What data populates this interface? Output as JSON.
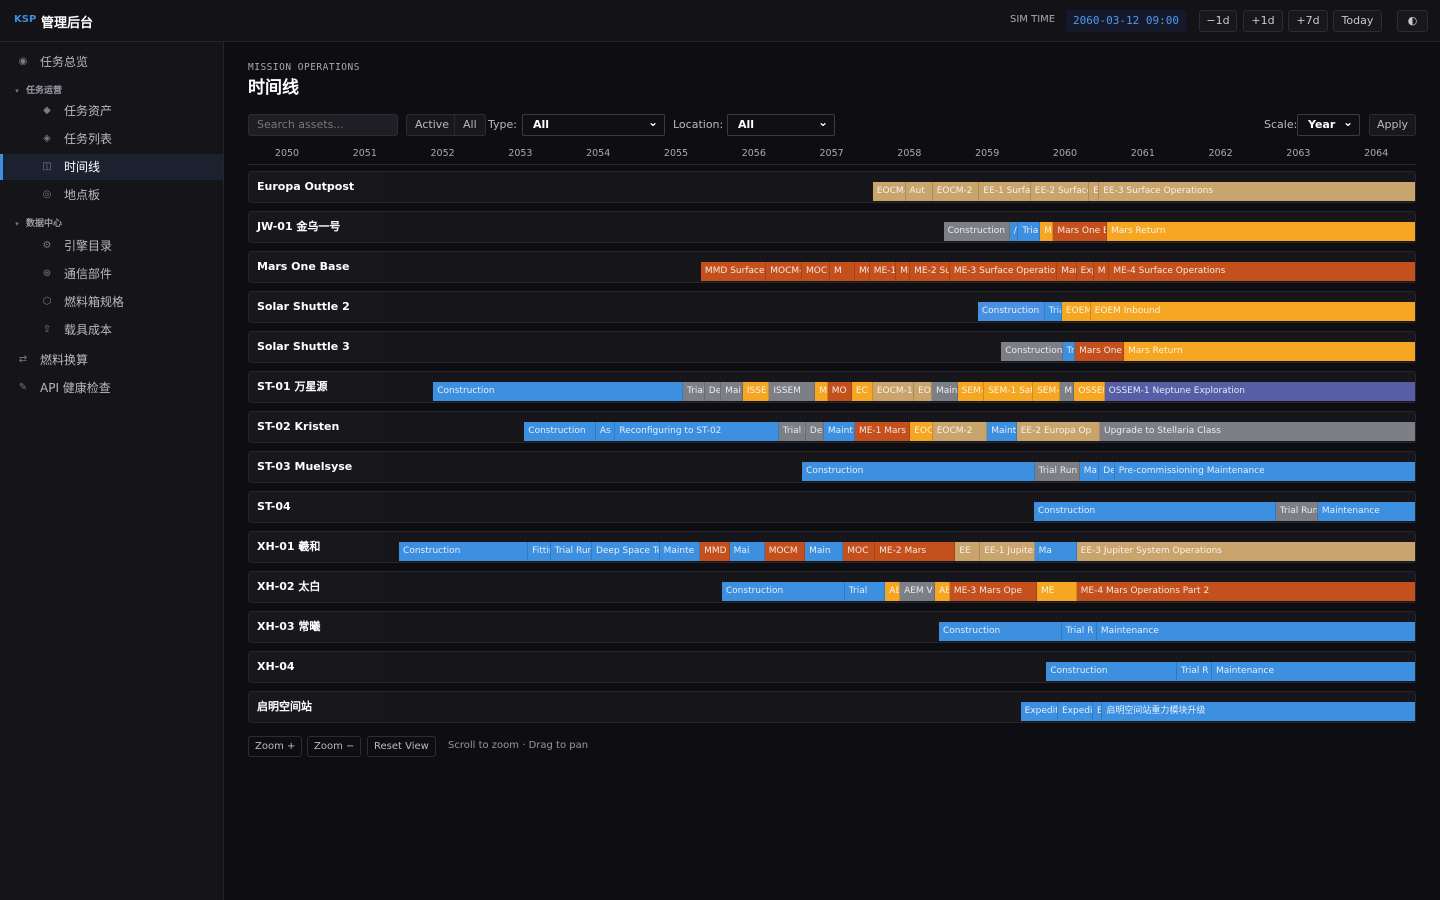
{
  "header": {
    "brand": "KSP",
    "app_name": "管理后台",
    "sim_time_label": "SIM TIME",
    "sim_time": "2060-03-12 09:00",
    "buttons": [
      "−1d",
      "+1d",
      "+7d",
      "Today"
    ],
    "theme_icon": "◐"
  },
  "sidebar": [
    {
      "icon": "◉",
      "label": "任务总览",
      "level": 0
    },
    {
      "icon": "▾",
      "label": "任务运营",
      "level": "section"
    },
    {
      "icon": "◆",
      "label": "任务资产",
      "level": 1
    },
    {
      "icon": "◈",
      "label": "任务列表",
      "level": 1
    },
    {
      "icon": "◫",
      "label": "时间线",
      "level": 1,
      "active": true
    },
    {
      "icon": "◎",
      "label": "地点板",
      "level": 1
    },
    {
      "icon": "▾",
      "label": "数据中心",
      "level": "section"
    },
    {
      "icon": "⚙",
      "label": "引擎目录",
      "level": 1
    },
    {
      "icon": "⊛",
      "label": "通信部件",
      "level": 1
    },
    {
      "icon": "⬡",
      "label": "燃料箱规格",
      "level": 1
    },
    {
      "icon": "⇧",
      "label": "载具成本",
      "level": 1
    },
    {
      "icon": "⇄",
      "label": "燃料换算",
      "level": 0
    },
    {
      "icon": "✎",
      "label": "API 健康检查",
      "level": 0
    }
  ],
  "page": {
    "kicker": "MISSION OPERATIONS",
    "title": "时间线"
  },
  "toolbar": {
    "search_placeholder": "Search assets...",
    "filters": [
      "Active",
      "All"
    ],
    "type_label": "Type:",
    "type_value": "All",
    "location_label": "Location:",
    "location_value": "All",
    "scale_label": "Scale:",
    "scale_value": "Year",
    "apply": "Apply"
  },
  "timeline": {
    "years": [
      2050,
      2051,
      2052,
      2053,
      2054,
      2055,
      2056,
      2057,
      2058,
      2059,
      2060,
      2061,
      2062,
      2063,
      2064
    ],
    "rows": [
      {
        "name": "Europa Outpost",
        "segments": [
          {
            "label": "EOCM-1",
            "start": 2057.53,
            "end": 2057.95,
            "color": "#c9a46c"
          },
          {
            "label": "Aut",
            "start": 2057.95,
            "end": 2058.3,
            "color": "#c9a46c"
          },
          {
            "label": "EOCM-2",
            "start": 2058.3,
            "end": 2058.9,
            "color": "#c9a46c"
          },
          {
            "label": "EE-1 Surfac",
            "start": 2058.9,
            "end": 2059.56,
            "color": "#c9a46c"
          },
          {
            "label": "EE-2 Surface",
            "start": 2059.56,
            "end": 2060.31,
            "color": "#c9a46c"
          },
          {
            "label": "E",
            "start": 2060.31,
            "end": 2060.44,
            "color": "#c9a46c"
          },
          {
            "label": "EE-3 Surface Operations",
            "start": 2060.44,
            "end": 2064.51,
            "color": "#c9a46c"
          }
        ]
      },
      {
        "name": "JW-01 金乌一号",
        "segments": [
          {
            "label": "Construction",
            "start": 2058.44,
            "end": 2059.29,
            "color": "#7d7f86"
          },
          {
            "label": "/",
            "start": 2059.29,
            "end": 2059.4,
            "color": "#3d8fe0"
          },
          {
            "label": "Trial",
            "start": 2059.4,
            "end": 2059.68,
            "color": "#3d8fe0"
          },
          {
            "label": "M",
            "start": 2059.68,
            "end": 2059.85,
            "color": "#f5a623"
          },
          {
            "label": "Mars One E",
            "start": 2059.85,
            "end": 2060.54,
            "color": "#c4511d"
          },
          {
            "label": "Mars Return",
            "start": 2060.54,
            "end": 2064.51,
            "color": "#f5a623"
          }
        ]
      },
      {
        "name": "Mars One Base",
        "segments": [
          {
            "label": "MMD Surface",
            "start": 2055.32,
            "end": 2056.16,
            "color": "#c4511d"
          },
          {
            "label": "MOCM-",
            "start": 2056.16,
            "end": 2056.62,
            "color": "#c4511d"
          },
          {
            "label": "MOC",
            "start": 2056.62,
            "end": 2056.98,
            "color": "#c4511d"
          },
          {
            "label": "M",
            "start": 2056.98,
            "end": 2057.3,
            "color": "#c4511d"
          },
          {
            "label": "MC",
            "start": 2057.3,
            "end": 2057.49,
            "color": "#c4511d"
          },
          {
            "label": "ME-1",
            "start": 2057.49,
            "end": 2057.83,
            "color": "#c4511d"
          },
          {
            "label": "MI",
            "start": 2057.83,
            "end": 2058.01,
            "color": "#c4511d"
          },
          {
            "label": "ME-2 Su",
            "start": 2058.01,
            "end": 2058.52,
            "color": "#c4511d"
          },
          {
            "label": "ME-3 Surface Operatio",
            "start": 2058.52,
            "end": 2059.9,
            "color": "#c4511d"
          },
          {
            "label": "Mar",
            "start": 2059.9,
            "end": 2060.15,
            "color": "#c4511d"
          },
          {
            "label": "Exp",
            "start": 2060.15,
            "end": 2060.37,
            "color": "#c4511d"
          },
          {
            "label": "M",
            "start": 2060.37,
            "end": 2060.57,
            "color": "#c4511d"
          },
          {
            "label": "ME-4 Surface Operations",
            "start": 2060.57,
            "end": 2064.51,
            "color": "#c4511d"
          }
        ]
      },
      {
        "name": "Solar Shuttle 2",
        "segments": [
          {
            "label": "Construction",
            "start": 2058.88,
            "end": 2059.74,
            "color": "#4a90e2"
          },
          {
            "label": "Tria",
            "start": 2059.74,
            "end": 2059.96,
            "color": "#3d8fe0"
          },
          {
            "label": "EOEM",
            "start": 2059.96,
            "end": 2060.33,
            "color": "#f5a623"
          },
          {
            "label": "EOEM Inbound",
            "start": 2060.33,
            "end": 2064.51,
            "color": "#f5a623"
          }
        ]
      },
      {
        "name": "Solar Shuttle 3",
        "segments": [
          {
            "label": "Construction",
            "start": 2059.18,
            "end": 2059.97,
            "color": "#7d7f86"
          },
          {
            "label": "Tr",
            "start": 2059.97,
            "end": 2060.13,
            "color": "#3d8fe0"
          },
          {
            "label": "Mars One",
            "start": 2060.13,
            "end": 2060.76,
            "color": "#c4511d"
          },
          {
            "label": "Mars Return",
            "start": 2060.76,
            "end": 2064.51,
            "color": "#f5a623"
          }
        ]
      },
      {
        "name": "ST-01 万星源",
        "segments": [
          {
            "label": "Construction",
            "start": 2051.88,
            "end": 2055.09,
            "color": "#3d8fe0"
          },
          {
            "label": "Trial",
            "start": 2055.09,
            "end": 2055.37,
            "color": "#7d7f86"
          },
          {
            "label": "De",
            "start": 2055.37,
            "end": 2055.58,
            "color": "#7d7f86"
          },
          {
            "label": "Mai",
            "start": 2055.58,
            "end": 2055.86,
            "color": "#7d7f86"
          },
          {
            "label": "ISSE",
            "start": 2055.86,
            "end": 2056.2,
            "color": "#f5a623"
          },
          {
            "label": "ISSEM",
            "start": 2056.2,
            "end": 2056.79,
            "color": "#7d7f86"
          },
          {
            "label": "M",
            "start": 2056.79,
            "end": 2056.95,
            "color": "#f5a623"
          },
          {
            "label": "MO",
            "start": 2056.95,
            "end": 2057.26,
            "color": "#c4511d"
          },
          {
            "label": "EC",
            "start": 2057.26,
            "end": 2057.53,
            "color": "#f5a623"
          },
          {
            "label": "EOCM-1",
            "start": 2057.53,
            "end": 2058.06,
            "color": "#c9a46c"
          },
          {
            "label": "EO",
            "start": 2058.06,
            "end": 2058.29,
            "color": "#c9a46c"
          },
          {
            "label": "Main",
            "start": 2058.29,
            "end": 2058.62,
            "color": "#7d7f86"
          },
          {
            "label": "SEM-",
            "start": 2058.62,
            "end": 2058.96,
            "color": "#f5a623"
          },
          {
            "label": "SEM-1 Sat",
            "start": 2058.96,
            "end": 2059.59,
            "color": "#f5a623"
          },
          {
            "label": "SEM-",
            "start": 2059.59,
            "end": 2059.94,
            "color": "#f5a623"
          },
          {
            "label": "M",
            "start": 2059.94,
            "end": 2060.12,
            "color": "#7d7f86"
          },
          {
            "label": "OSSEM",
            "start": 2060.12,
            "end": 2060.51,
            "color": "#f5a623"
          },
          {
            "label": "OSSEM-1 Neptune Exploration",
            "start": 2060.51,
            "end": 2064.51,
            "color": "#585ea6"
          }
        ]
      },
      {
        "name": "ST-02 Kristen",
        "segments": [
          {
            "label": "Construction",
            "start": 2053.05,
            "end": 2053.97,
            "color": "#3d8fe0"
          },
          {
            "label": "As",
            "start": 2053.97,
            "end": 2054.22,
            "color": "#3d8fe0"
          },
          {
            "label": "Reconfiguring to ST-02",
            "start": 2054.22,
            "end": 2056.32,
            "color": "#3d8fe0"
          },
          {
            "label": "Trial R",
            "start": 2056.32,
            "end": 2056.67,
            "color": "#7d7f86"
          },
          {
            "label": "De",
            "start": 2056.67,
            "end": 2056.9,
            "color": "#7d7f86"
          },
          {
            "label": "Maint",
            "start": 2056.9,
            "end": 2057.3,
            "color": "#3d8fe0"
          },
          {
            "label": "ME-1 Mars",
            "start": 2057.3,
            "end": 2058.01,
            "color": "#c4511d"
          },
          {
            "label": "EOC",
            "start": 2058.01,
            "end": 2058.3,
            "color": "#f5a623"
          },
          {
            "label": "EOCM-2",
            "start": 2058.3,
            "end": 2059.0,
            "color": "#c9a46c"
          },
          {
            "label": "Maint",
            "start": 2059.0,
            "end": 2059.38,
            "color": "#3d8fe0"
          },
          {
            "label": "EE-2 Europa Op",
            "start": 2059.38,
            "end": 2060.45,
            "color": "#c9a46c"
          },
          {
            "label": "Upgrade to Stellaria Class",
            "start": 2060.45,
            "end": 2064.51,
            "color": "#7d7f86"
          }
        ]
      },
      {
        "name": "ST-03 Muelsyse",
        "segments": [
          {
            "label": "Construction",
            "start": 2056.62,
            "end": 2059.61,
            "color": "#3d8fe0"
          },
          {
            "label": "Trial Run",
            "start": 2059.61,
            "end": 2060.19,
            "color": "#7d7f86"
          },
          {
            "label": "Ma",
            "start": 2060.19,
            "end": 2060.44,
            "color": "#3d8fe0"
          },
          {
            "label": "De",
            "start": 2060.44,
            "end": 2060.64,
            "color": "#3d8fe0"
          },
          {
            "label": "Pre-commissioning Maintenance",
            "start": 2060.64,
            "end": 2064.51,
            "color": "#3d8fe0"
          }
        ]
      },
      {
        "name": "ST-04",
        "segments": [
          {
            "label": "Construction",
            "start": 2059.6,
            "end": 2062.71,
            "color": "#3d8fe0"
          },
          {
            "label": "Trial Run",
            "start": 2062.71,
            "end": 2063.25,
            "color": "#7d7f86"
          },
          {
            "label": "Maintenance",
            "start": 2063.25,
            "end": 2064.51,
            "color": "#3d8fe0"
          }
        ]
      },
      {
        "name": "XH-01 羲和",
        "segments": [
          {
            "label": "Construction",
            "start": 2051.44,
            "end": 2053.1,
            "color": "#3d8fe0"
          },
          {
            "label": "Fittin",
            "start": 2053.1,
            "end": 2053.39,
            "color": "#3d8fe0"
          },
          {
            "label": "Trial Run",
            "start": 2053.39,
            "end": 2053.92,
            "color": "#3d8fe0"
          },
          {
            "label": "Deep Space Te",
            "start": 2053.92,
            "end": 2054.79,
            "color": "#3d8fe0"
          },
          {
            "label": "Mainte",
            "start": 2054.79,
            "end": 2055.31,
            "color": "#3d8fe0"
          },
          {
            "label": "MMD",
            "start": 2055.31,
            "end": 2055.69,
            "color": "#c4511d"
          },
          {
            "label": "Mai",
            "start": 2055.69,
            "end": 2056.14,
            "color": "#3d8fe0"
          },
          {
            "label": "MOCM",
            "start": 2056.14,
            "end": 2056.66,
            "color": "#c4511d"
          },
          {
            "label": "Main",
            "start": 2056.66,
            "end": 2057.15,
            "color": "#3d8fe0"
          },
          {
            "label": "MOC",
            "start": 2057.15,
            "end": 2057.56,
            "color": "#c4511d"
          },
          {
            "label": "ME-2 Mars",
            "start": 2057.56,
            "end": 2058.59,
            "color": "#c4511d"
          },
          {
            "label": "EE",
            "start": 2058.59,
            "end": 2058.91,
            "color": "#c9a46c"
          },
          {
            "label": "EE-1 Jupiter",
            "start": 2058.91,
            "end": 2059.61,
            "color": "#c9a46c"
          },
          {
            "label": "Ma",
            "start": 2059.61,
            "end": 2060.15,
            "color": "#3d8fe0"
          },
          {
            "label": "EE-3 Jupiter System Operations",
            "start": 2060.15,
            "end": 2064.51,
            "color": "#c9a46c"
          }
        ]
      },
      {
        "name": "XH-02 太白",
        "segments": [
          {
            "label": "Construction",
            "start": 2055.59,
            "end": 2057.17,
            "color": "#3d8fe0"
          },
          {
            "label": "Trial",
            "start": 2057.17,
            "end": 2057.69,
            "color": "#3d8fe0"
          },
          {
            "label": "AE",
            "start": 2057.69,
            "end": 2057.88,
            "color": "#f5a623"
          },
          {
            "label": "AEM V",
            "start": 2057.88,
            "end": 2058.33,
            "color": "#7d7f86"
          },
          {
            "label": "AE",
            "start": 2058.33,
            "end": 2058.52,
            "color": "#f5a623"
          },
          {
            "label": "ME-3 Mars Ope",
            "start": 2058.52,
            "end": 2059.64,
            "color": "#c4511d"
          },
          {
            "label": "ME",
            "start": 2059.64,
            "end": 2060.15,
            "color": "#f5a623"
          },
          {
            "label": "ME-4 Mars Operations Part 2",
            "start": 2060.15,
            "end": 2064.51,
            "color": "#c4511d"
          }
        ]
      },
      {
        "name": "XH-03 常曦",
        "segments": [
          {
            "label": "Construction",
            "start": 2058.38,
            "end": 2059.96,
            "color": "#3d8fe0"
          },
          {
            "label": "Trial R",
            "start": 2059.96,
            "end": 2060.41,
            "color": "#3d8fe0"
          },
          {
            "label": "Maintenance",
            "start": 2060.41,
            "end": 2064.51,
            "color": "#3d8fe0"
          }
        ]
      },
      {
        "name": "XH-04",
        "segments": [
          {
            "label": "Construction",
            "start": 2059.76,
            "end": 2061.44,
            "color": "#3d8fe0"
          },
          {
            "label": "Trial R",
            "start": 2061.44,
            "end": 2061.89,
            "color": "#3d8fe0"
          },
          {
            "label": "Maintenance",
            "start": 2061.89,
            "end": 2064.51,
            "color": "#3d8fe0"
          }
        ]
      },
      {
        "name": "启明空间站",
        "segments": [
          {
            "label": "Expedit",
            "start": 2059.43,
            "end": 2059.91,
            "color": "#3d8fe0"
          },
          {
            "label": "Expedi",
            "start": 2059.91,
            "end": 2060.36,
            "color": "#3d8fe0"
          },
          {
            "label": "E",
            "start": 2060.36,
            "end": 2060.48,
            "color": "#3d8fe0"
          },
          {
            "label": "启明空间站重力模块升级",
            "start": 2060.48,
            "end": 2064.51,
            "color": "#3d8fe0"
          }
        ]
      }
    ]
  },
  "footer": {
    "buttons": [
      "Zoom +",
      "Zoom −",
      "Reset View"
    ],
    "hint": "Scroll to zoom · Drag to pan"
  }
}
